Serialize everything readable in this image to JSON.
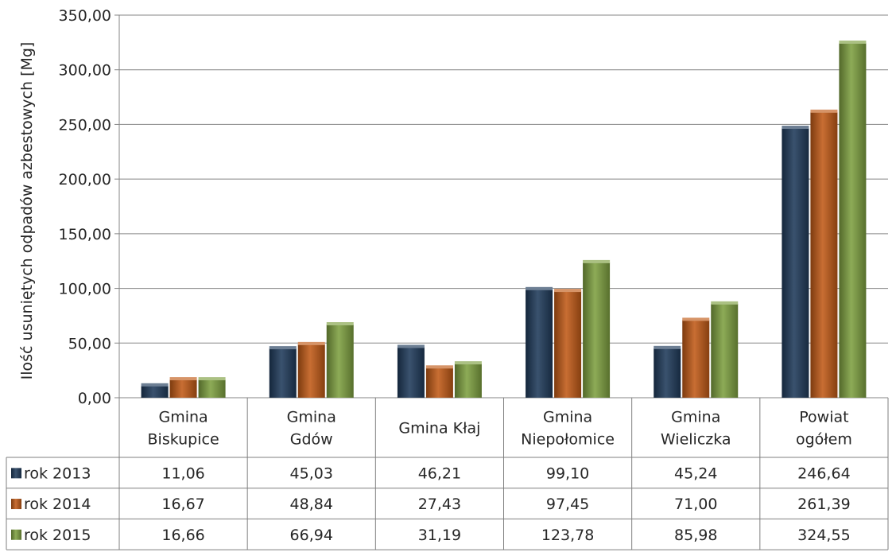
{
  "chart_data": {
    "type": "bar",
    "ylabel": "Ilość usuniętych odpadów azbestowych [Mg]",
    "ylim": [
      0,
      350
    ],
    "y_ticks": [
      "0,00",
      "50,00",
      "100,00",
      "150,00",
      "200,00",
      "250,00",
      "300,00",
      "350,00"
    ],
    "y_tick_values": [
      0,
      50,
      100,
      150,
      200,
      250,
      300,
      350
    ],
    "grid": true,
    "legend": "data-table-left",
    "categories": [
      [
        "Gmina",
        "Biskupice"
      ],
      [
        "Gmina",
        "Gdów"
      ],
      [
        "Gmina Kłaj"
      ],
      [
        "Gmina",
        "Niepołomice"
      ],
      [
        "Gmina",
        "Wieliczka"
      ],
      [
        "Powiat",
        "ogółem"
      ]
    ],
    "series": [
      {
        "name": "rok 2013",
        "color": "#1f3a5a",
        "values": [
          11.06,
          45.03,
          46.21,
          99.1,
          45.24,
          246.64
        ],
        "labels": [
          "11,06",
          "45,03",
          "46,21",
          "99,10",
          "45,24",
          "246,64"
        ]
      },
      {
        "name": "rok 2014",
        "color": "#c05a17",
        "values": [
          16.67,
          48.84,
          27.43,
          97.45,
          71.0,
          261.39
        ],
        "labels": [
          "16,67",
          "48,84",
          "27,43",
          "97,45",
          "71,00",
          "261,39"
        ]
      },
      {
        "name": "rok 2015",
        "color": "#7ea040",
        "values": [
          16.66,
          66.94,
          31.19,
          123.78,
          85.98,
          324.55
        ],
        "labels": [
          "16,66",
          "66,94",
          "31,19",
          "123,78",
          "85,98",
          "324,55"
        ]
      }
    ]
  }
}
